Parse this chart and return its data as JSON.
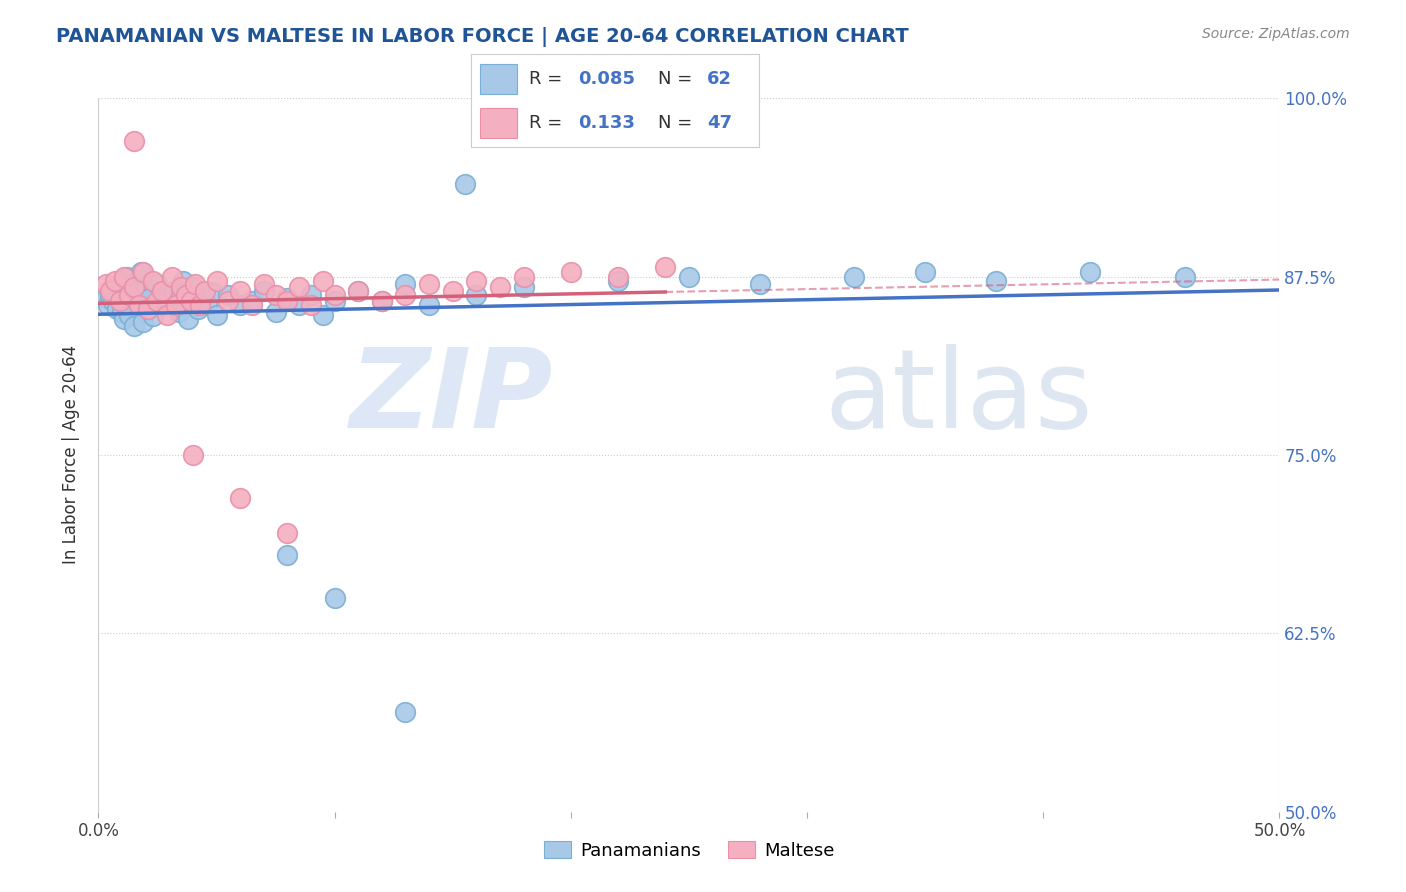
{
  "title": "PANAMANIAN VS MALTESE IN LABOR FORCE | AGE 20-64 CORRELATION CHART",
  "source": "Source: ZipAtlas.com",
  "ylabel": "In Labor Force | Age 20-64",
  "xlim": [
    0.0,
    0.5
  ],
  "ylim": [
    0.5,
    1.0
  ],
  "xticks": [
    0.0,
    0.1,
    0.2,
    0.3,
    0.4,
    0.5
  ],
  "xtick_labels": [
    "0.0%",
    "",
    "",
    "",
    "",
    "50.0%"
  ],
  "yticks": [
    0.5,
    0.625,
    0.75,
    0.875,
    1.0
  ],
  "ytick_labels": [
    "50.0%",
    "62.5%",
    "75.0%",
    "87.5%",
    "100.0%"
  ],
  "blue_R": 0.085,
  "blue_N": 62,
  "pink_R": 0.133,
  "pink_N": 47,
  "blue_color": "#a8c8e8",
  "pink_color": "#f4afc0",
  "blue_edge_color": "#7aafd4",
  "pink_edge_color": "#e890a8",
  "blue_line_color": "#4472c4",
  "pink_line_color": "#d4607a",
  "title_color": "#1f5496",
  "right_tick_color": "#4472c4",
  "watermark_zip_color": "#c8d8f0",
  "watermark_atlas_color": "#c8d8e8",
  "legend_border_color": "#cccccc",
  "legend_text_color": "#333333",
  "legend_val_color": "#4472c4"
}
